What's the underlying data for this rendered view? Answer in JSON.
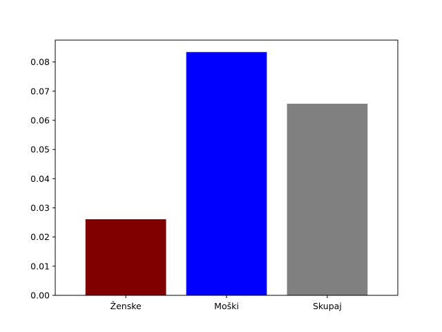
{
  "chart_data": {
    "type": "bar",
    "categories": [
      "Ženske",
      "Moški",
      "Skupaj"
    ],
    "values": [
      0.0261,
      0.0834,
      0.0657
    ],
    "colors": [
      "#800000",
      "#0000ff",
      "#808080"
    ],
    "ylim": [
      0,
      0.0875
    ],
    "yticks": [
      0.0,
      0.01,
      0.02,
      0.03,
      0.04,
      0.05,
      0.06,
      0.07,
      0.08
    ],
    "ytick_labels": [
      "0.00",
      "0.01",
      "0.02",
      "0.03",
      "0.04",
      "0.05",
      "0.06",
      "0.07",
      "0.08"
    ],
    "grid": false,
    "title": "",
    "xlabel": "",
    "ylabel": ""
  }
}
